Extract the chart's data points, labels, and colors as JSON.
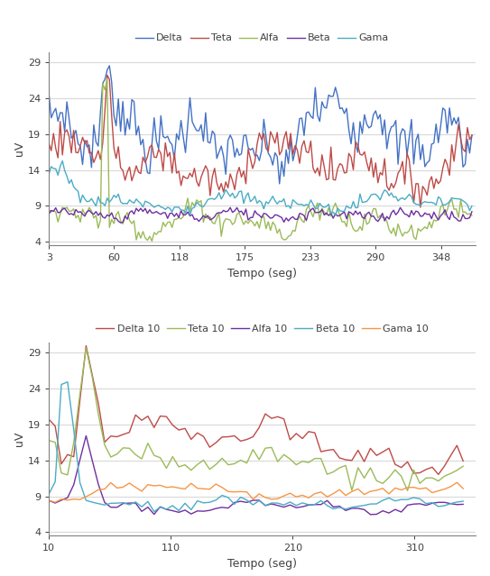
{
  "chart1": {
    "xlabel": "Tempo (seg)",
    "ylabel": "uV",
    "xticks": [
      3,
      60,
      118,
      175,
      233,
      290,
      348
    ],
    "yticks": [
      4,
      9,
      14,
      19,
      24,
      29
    ],
    "ylim": [
      3.5,
      30.5
    ],
    "xlim": [
      3,
      378
    ],
    "legend": [
      "Delta",
      "Teta",
      "Alfa",
      "Beta",
      "Gama"
    ],
    "colors": [
      "#4472C4",
      "#BE4B48",
      "#9BBB59",
      "#7030A0",
      "#4BACC6"
    ]
  },
  "chart2": {
    "xlabel": "Tempo (seg)",
    "ylabel": "uV",
    "xticks": [
      10,
      110,
      210,
      310
    ],
    "yticks": [
      4,
      9,
      14,
      19,
      24,
      29
    ],
    "ylim": [
      3.5,
      30.5
    ],
    "xlim": [
      10,
      360
    ],
    "legend": [
      "Delta 10",
      "Teta 10",
      "Alfa 10",
      "Beta 10",
      "Gama 10"
    ],
    "colors": [
      "#BE4B48",
      "#9BBB59",
      "#7030A0",
      "#4BACC6",
      "#F79646"
    ]
  },
  "fig_bg": "#FFFFFF",
  "plot_bg": "#FFFFFF",
  "grid_color": "#D9D9D9",
  "spine_color": "#808080",
  "tick_color": "#404040",
  "label_color": "#404040"
}
